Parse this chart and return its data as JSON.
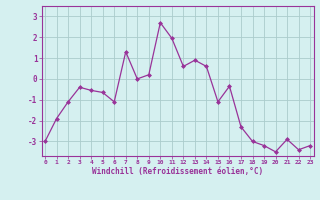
{
  "x": [
    0,
    1,
    2,
    3,
    4,
    5,
    6,
    7,
    8,
    9,
    10,
    11,
    12,
    13,
    14,
    15,
    16,
    17,
    18,
    19,
    20,
    21,
    22,
    23
  ],
  "y": [
    -3.0,
    -1.9,
    -1.1,
    -0.4,
    -0.55,
    -0.65,
    -1.1,
    1.3,
    0.0,
    0.2,
    2.7,
    1.95,
    0.6,
    0.9,
    0.6,
    -1.1,
    -0.35,
    -2.3,
    -3.0,
    -3.2,
    -3.5,
    -2.9,
    -3.4,
    -3.2
  ],
  "line_color": "#993399",
  "marker_color": "#993399",
  "bg_color": "#d5f0f0",
  "grid_color": "#aacccc",
  "xlabel": "Windchill (Refroidissement éolien,°C)",
  "xlabel_color": "#993399",
  "xtick_labels": [
    "0",
    "1",
    "2",
    "3",
    "4",
    "5",
    "6",
    "7",
    "8",
    "9",
    "10",
    "11",
    "12",
    "13",
    "14",
    "15",
    "16",
    "17",
    "18",
    "19",
    "20",
    "21",
    "22",
    "23"
  ],
  "ytick_labels": [
    "-3",
    "-2",
    "-1",
    "0",
    "1",
    "2",
    "3"
  ],
  "ylim": [
    -3.7,
    3.5
  ],
  "xlim": [
    -0.3,
    23.3
  ]
}
